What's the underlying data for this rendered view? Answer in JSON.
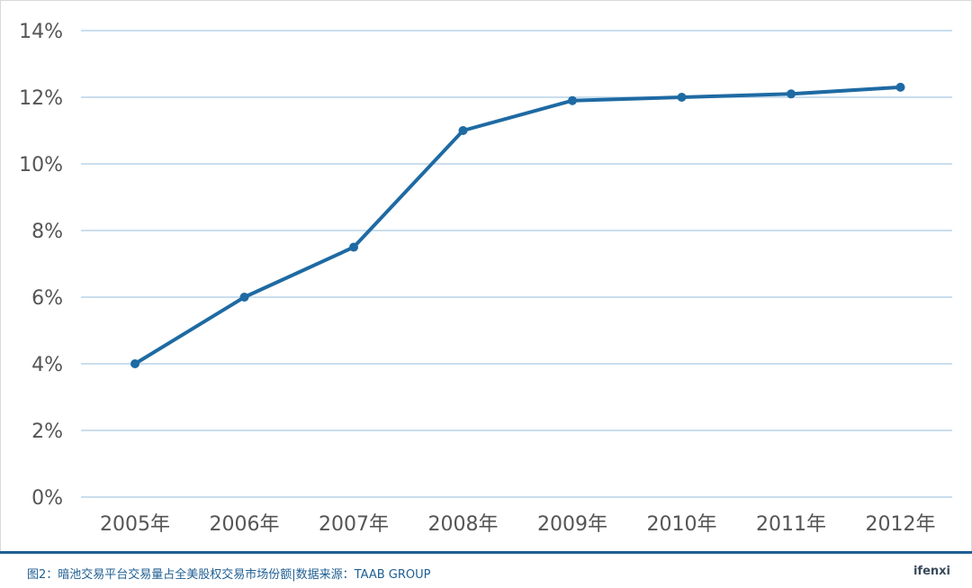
{
  "chart_data": {
    "type": "line",
    "categories": [
      "2005年",
      "2006年",
      "2007年",
      "2008年",
      "2009年",
      "2010年",
      "2011年",
      "2012年"
    ],
    "series": [
      {
        "values": [
          4.0,
          6.0,
          7.5,
          11.0,
          11.9,
          12.0,
          12.1,
          12.3
        ]
      }
    ],
    "ylim": [
      0,
      14
    ],
    "yticks": [
      "0%",
      "2%",
      "4%",
      "6%",
      "8%",
      "10%",
      "12%",
      "14%"
    ],
    "ytick_values": [
      0,
      2,
      4,
      6,
      8,
      10,
      12,
      14
    ],
    "grid": true,
    "colors": {
      "line": "#1e6aa3",
      "grid": "#b9d3e8",
      "tick_text": "#555555"
    }
  },
  "footer": {
    "caption": "图2：暗池交易平台交易量占全美股权交易市场份额|数据来源：TAAB GROUP",
    "brand": "ifenxi"
  }
}
